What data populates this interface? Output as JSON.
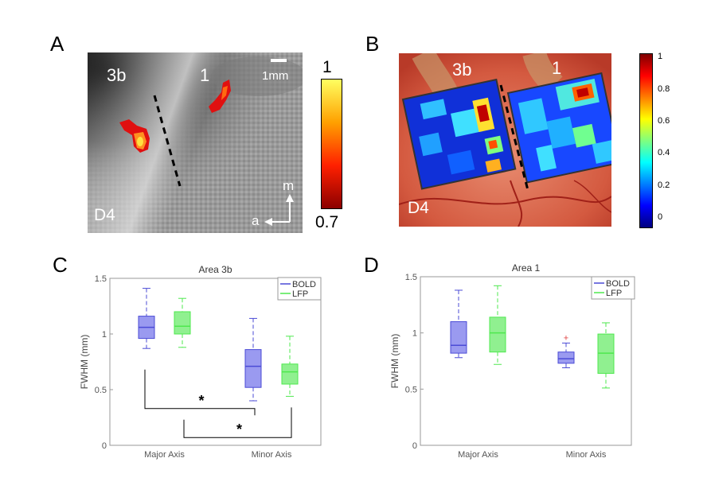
{
  "panels": {
    "A": {
      "letter": "A",
      "label_3b": "3b",
      "label_1": "1",
      "scale_bar": "1mm",
      "digit": "D4",
      "dir_m": "m",
      "dir_a": "a",
      "colorbar": {
        "max": "1",
        "min": "0.7",
        "colors": [
          "#ffff60",
          "#ffa000",
          "#ff2000",
          "#8b0000"
        ]
      }
    },
    "B": {
      "letter": "B",
      "label_3b": "3b",
      "label_1": "1",
      "digit": "D4",
      "colorbar": {
        "ticks": [
          "1",
          "0.8",
          "0.6",
          "0.4",
          "0.2",
          "0"
        ],
        "colors": [
          "#00007f",
          "#0000ff",
          "#007fff",
          "#00ffff",
          "#7fff7f",
          "#ffff00",
          "#ff7f00",
          "#ff0000",
          "#7f0000"
        ]
      }
    },
    "C": {
      "letter": "C"
    },
    "D": {
      "letter": "D"
    }
  },
  "chart_data": [
    {
      "type": "box",
      "title": "Area 3b",
      "ylabel": "FWHM (mm)",
      "ylim": [
        0,
        1.5
      ],
      "yticks": [
        "0",
        "0.5",
        "1",
        "1.5"
      ],
      "categories": [
        "Major Axis",
        "Minor Axis"
      ],
      "legend": [
        {
          "name": "BOLD",
          "color": "#4b4bd6"
        },
        {
          "name": "LFP",
          "color": "#4ee84e"
        }
      ],
      "series": [
        {
          "name": "BOLD",
          "boxes": [
            {
              "min": 0.87,
              "q1": 0.96,
              "median": 1.06,
              "q3": 1.16,
              "max": 1.41
            },
            {
              "min": 0.4,
              "q1": 0.52,
              "median": 0.71,
              "q3": 0.86,
              "max": 1.14
            }
          ]
        },
        {
          "name": "LFP",
          "boxes": [
            {
              "min": 0.88,
              "q1": 1.0,
              "median": 1.07,
              "q3": 1.2,
              "max": 1.32
            },
            {
              "min": 0.44,
              "q1": 0.55,
              "median": 0.66,
              "q3": 0.73,
              "max": 0.98
            }
          ]
        }
      ],
      "significance": [
        {
          "label": "*",
          "from": "BOLD Major Axis",
          "to": "BOLD Minor Axis"
        },
        {
          "label": "*",
          "from": "LFP Major Axis",
          "to": "LFP Minor Axis"
        }
      ]
    },
    {
      "type": "box",
      "title": "Area 1",
      "ylabel": "FWHM (mm)",
      "ylim": [
        0,
        1.5
      ],
      "yticks": [
        "0",
        "0.5",
        "1",
        "1.5"
      ],
      "categories": [
        "Major Axis",
        "Minor Axis"
      ],
      "legend": [
        {
          "name": "BOLD",
          "color": "#4b4bd6"
        },
        {
          "name": "LFP",
          "color": "#4ee84e"
        }
      ],
      "series": [
        {
          "name": "BOLD",
          "boxes": [
            {
              "min": 0.78,
              "q1": 0.82,
              "median": 0.89,
              "q3": 1.1,
              "max": 1.38
            },
            {
              "min": 0.69,
              "q1": 0.73,
              "median": 0.77,
              "q3": 0.83,
              "max": 0.91,
              "outliers": [
                0.96
              ]
            }
          ]
        },
        {
          "name": "LFP",
          "boxes": [
            {
              "min": 0.72,
              "q1": 0.83,
              "median": 1.0,
              "q3": 1.14,
              "max": 1.42
            },
            {
              "min": 0.51,
              "q1": 0.64,
              "median": 0.82,
              "q3": 0.99,
              "max": 1.09
            }
          ]
        }
      ]
    }
  ]
}
